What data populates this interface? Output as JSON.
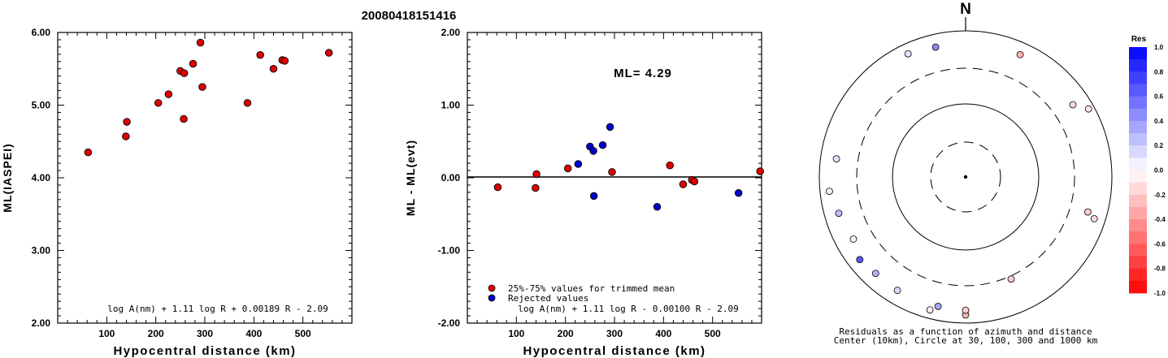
{
  "title": "20080418151416",
  "chart_data": [
    {
      "type": "scatter",
      "xlabel": "Hypocentral distance (km)",
      "ylabel": "ML(IASPEI)",
      "xticks": [
        "100",
        "200",
        "300",
        "400",
        "500"
      ],
      "yticks": [
        "2.00",
        "3.00",
        "4.00",
        "5.00",
        "6.00"
      ],
      "xlim": [
        0,
        600
      ],
      "ylim": [
        2,
        6
      ],
      "formula": "log A(nm) + 1.11 log R + 0.00189 R - 2.09",
      "point_color": "#dd0000",
      "points": [
        {
          "x": 62,
          "y": 4.35
        },
        {
          "x": 139,
          "y": 4.57
        },
        {
          "x": 141,
          "y": 4.77
        },
        {
          "x": 205,
          "y": 5.03
        },
        {
          "x": 226,
          "y": 5.15
        },
        {
          "x": 250,
          "y": 5.47
        },
        {
          "x": 257,
          "y": 4.81
        },
        {
          "x": 258,
          "y": 5.44
        },
        {
          "x": 276,
          "y": 5.57
        },
        {
          "x": 291,
          "y": 5.86
        },
        {
          "x": 295,
          "y": 5.25
        },
        {
          "x": 387,
          "y": 5.03
        },
        {
          "x": 413,
          "y": 5.69
        },
        {
          "x": 440,
          "y": 5.5
        },
        {
          "x": 458,
          "y": 5.62
        },
        {
          "x": 463,
          "y": 5.61
        },
        {
          "x": 553,
          "y": 5.72
        }
      ]
    },
    {
      "type": "scatter",
      "xlabel": "Hypocentral distance (km)",
      "ylabel": "ML - ML(evt)",
      "xticks": [
        "100",
        "200",
        "300",
        "400",
        "500"
      ],
      "yticks": [
        "-2.00",
        "-1.00",
        "0.00",
        "1.00",
        "2.00"
      ],
      "xlim": [
        0,
        600
      ],
      "ylim": [
        -2,
        2
      ],
      "annotation": "ML= 4.29",
      "formula": "log A(nm) + 1.11 log R - 0.00100 R - 2.09",
      "legend": [
        {
          "label": "25%-75% values for trimmed mean",
          "color": "#dd0000"
        },
        {
          "label": "Rejected values",
          "color": "#0000cc"
        }
      ],
      "series": [
        {
          "name": "25%-75% values for trimmed mean",
          "points": [
            {
              "x": 62,
              "y": -0.13
            },
            {
              "x": 139,
              "y": -0.14
            },
            {
              "x": 141,
              "y": 0.05
            },
            {
              "x": 205,
              "y": 0.13
            },
            {
              "x": 295,
              "y": 0.08
            },
            {
              "x": 413,
              "y": 0.17
            },
            {
              "x": 440,
              "y": -0.09
            },
            {
              "x": 458,
              "y": -0.03
            },
            {
              "x": 463,
              "y": -0.05
            },
            {
              "x": 597,
              "y": 0.09
            }
          ]
        },
        {
          "name": "Rejected values",
          "points": [
            {
              "x": 226,
              "y": 0.19
            },
            {
              "x": 250,
              "y": 0.43
            },
            {
              "x": 257,
              "y": 0.37
            },
            {
              "x": 258,
              "y": -0.25
            },
            {
              "x": 276,
              "y": 0.45
            },
            {
              "x": 291,
              "y": 0.7
            },
            {
              "x": 387,
              "y": -0.4
            },
            {
              "x": 553,
              "y": -0.21
            }
          ]
        }
      ]
    },
    {
      "type": "polar",
      "north_label": "N",
      "caption_line1": "Residuals as a function of azimuth and distance",
      "caption_line2": "Center (10km), Circle at 30, 100, 300 and 1000 km",
      "points": [
        {
          "az": 335,
          "dist": 720,
          "res": 0.1
        },
        {
          "az": 347,
          "dist": 660,
          "res": 0.45
        },
        {
          "az": 24,
          "dist": 675,
          "res": -0.3
        },
        {
          "az": 56,
          "dist": 580,
          "res": -0.15
        },
        {
          "az": 61,
          "dist": 830,
          "res": -0.1
        },
        {
          "az": 278,
          "dist": 600,
          "res": 0.1
        },
        {
          "az": 264,
          "dist": 740,
          "res": 0.05
        },
        {
          "az": 254,
          "dist": 630,
          "res": 0.25
        },
        {
          "az": 241,
          "dist": 560,
          "res": 0.05
        },
        {
          "az": 232,
          "dist": 680,
          "res": 0.65
        },
        {
          "az": 223,
          "dist": 630,
          "res": 0.3
        },
        {
          "az": 211,
          "dist": 640,
          "res": 0.15
        },
        {
          "az": 192,
          "dist": 640,
          "res": 0.35
        },
        {
          "az": 195,
          "dist": 760,
          "res": -0.05
        },
        {
          "az": 180,
          "dist": 770,
          "res": -0.3
        },
        {
          "az": 180,
          "dist": 660,
          "res": -0.2
        },
        {
          "az": 156,
          "dist": 330,
          "res": -0.2
        },
        {
          "az": 106,
          "dist": 540,
          "res": -0.2
        },
        {
          "az": 108,
          "dist": 700,
          "res": -0.15
        }
      ],
      "colorbar": {
        "title": "Res",
        "ticks": [
          "1.0",
          "0.8",
          "0.6",
          "0.4",
          "0.2",
          "0.0",
          "-0.2",
          "-0.4",
          "-0.6",
          "-0.8",
          "-1.0"
        ]
      }
    }
  ]
}
